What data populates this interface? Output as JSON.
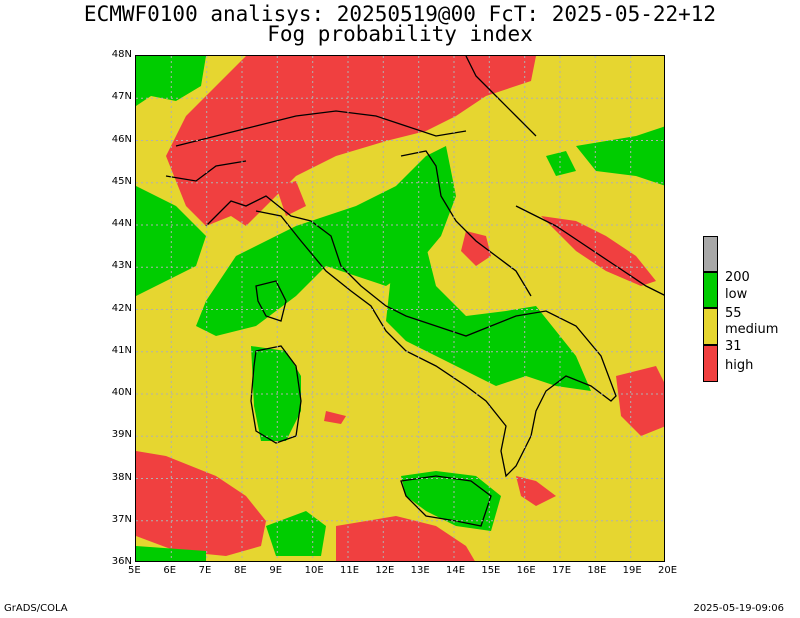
{
  "title_line1": "ECMWF0100 analisys: 20250519@00 FcT: 2025-05-22+12",
  "title_line2": "Fog probability index",
  "lat_labels": [
    "48N",
    "47N",
    "46N",
    "45N",
    "44N",
    "43N",
    "42N",
    "41N",
    "40N",
    "39N",
    "38N",
    "37N",
    "36N"
  ],
  "lon_labels": [
    "5E",
    "6E",
    "7E",
    "8E",
    "9E",
    "10E",
    "11E",
    "12E",
    "13E",
    "14E",
    "15E",
    "16E",
    "17E",
    "18E",
    "19E",
    "20E"
  ],
  "legend": {
    "colors": {
      "missing": "#a8a8a8",
      "low": "#00cc00",
      "medium": "#e6d630",
      "high": "#f04040"
    },
    "value_200": "200",
    "label_low": "low",
    "value_55": "55",
    "label_medium": "medium",
    "value_31": "31",
    "label_high": "high"
  },
  "footer_left": "GrADS/COLA",
  "footer_right": "2025-05-19-09:06"
}
